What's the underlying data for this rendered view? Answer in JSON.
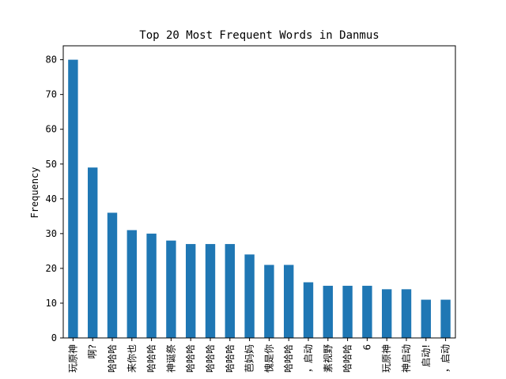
{
  "chart_data": {
    "type": "bar",
    "title": "Top 20 Most Frequent Words in Danmus",
    "xlabel": "",
    "ylabel": "Frequency",
    "ylim": [
      0,
      84
    ],
    "yticks": [
      0,
      10,
      20,
      30,
      40,
      50,
      60,
      70,
      80
    ],
    "grid": false,
    "bar_color": "#1f77b4",
    "categories": [
      "玩原神",
      "啊?",
      "哈哈哈",
      "来你也",
      "哈哈哈",
      "神诞祭",
      "哈哈哈",
      "哈哈哈",
      "哈哈哈",
      "芭妈妈",
      "愧是你",
      "哈哈哈",
      "，启动",
      "素视野",
      "哈哈哈",
      "6",
      "玩原神",
      "神启动",
      "启动!",
      "，启动"
    ],
    "values": [
      80,
      49,
      36,
      31,
      30,
      28,
      27,
      27,
      27,
      24,
      21,
      21,
      16,
      15,
      15,
      15,
      14,
      14,
      11,
      11
    ]
  }
}
